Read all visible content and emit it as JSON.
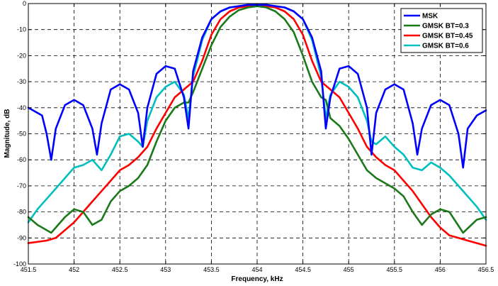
{
  "chart_data": {
    "type": "line",
    "title": "",
    "xlabel": "Frequency, kHz",
    "ylabel": "Magnitude, dB",
    "xlim": [
      451.5,
      456.5
    ],
    "ylim": [
      -100,
      0
    ],
    "xticks": [
      451.5,
      452,
      452.5,
      453,
      453.5,
      454,
      454.5,
      455,
      455.5,
      456,
      456.5
    ],
    "xtick_labels": [
      "451.5",
      "452",
      "452.5",
      "453",
      "453.5",
      "454",
      "454.5",
      "455",
      "455.5",
      "456",
      "456.5"
    ],
    "yticks": [
      0,
      -10,
      -20,
      -30,
      -40,
      -50,
      -60,
      -70,
      -80,
      -90,
      -100
    ],
    "ytick_labels": [
      "0",
      "-10",
      "-20",
      "-30",
      "-40",
      "-50",
      "-60",
      "-70",
      "-80",
      "-90",
      "-100"
    ],
    "grid": true,
    "legend_position": "top-right",
    "series": [
      {
        "name": "MSK",
        "color": "#0000ff",
        "x": [
          451.5,
          451.65,
          451.7,
          451.75,
          451.8,
          451.9,
          452.0,
          452.1,
          452.2,
          452.25,
          452.3,
          452.4,
          452.5,
          452.6,
          452.7,
          452.75,
          452.8,
          452.9,
          453.0,
          453.1,
          453.2,
          453.25,
          453.3,
          453.4,
          453.5,
          453.6,
          453.7,
          453.8,
          453.9,
          454.0,
          454.1,
          454.2,
          454.3,
          454.4,
          454.5,
          454.6,
          454.7,
          454.75,
          454.8,
          454.9,
          455.0,
          455.1,
          455.2,
          455.25,
          455.3,
          455.4,
          455.5,
          455.6,
          455.7,
          455.75,
          455.8,
          455.9,
          456.0,
          456.1,
          456.2,
          456.25,
          456.3,
          456.4,
          456.5
        ],
        "y": [
          -40,
          -43,
          -50,
          -60,
          -48,
          -39,
          -37,
          -39,
          -48,
          -58,
          -46,
          -33,
          -31,
          -33,
          -42,
          -55,
          -40,
          -27,
          -24,
          -25,
          -36,
          -48,
          -26,
          -13,
          -6,
          -3,
          -1.5,
          -1,
          -0.5,
          -0.5,
          -0.5,
          -1,
          -1.5,
          -3,
          -6,
          -13,
          -26,
          -48,
          -36,
          -25,
          -24,
          -27,
          -40,
          -58,
          -42,
          -33,
          -31,
          -33,
          -46,
          -58,
          -48,
          -39,
          -37,
          -39,
          -50,
          -63,
          -48,
          -43,
          -41
        ]
      },
      {
        "name": "GMSK BT=0.3",
        "color": "#1a7a1a",
        "x": [
          451.5,
          451.6,
          451.75,
          451.9,
          452.0,
          452.1,
          452.2,
          452.3,
          452.4,
          452.5,
          452.6,
          452.7,
          452.8,
          452.9,
          453.0,
          453.1,
          453.2,
          453.25,
          453.3,
          453.4,
          453.5,
          453.6,
          453.7,
          453.8,
          453.9,
          454.0,
          454.1,
          454.2,
          454.3,
          454.4,
          454.5,
          454.6,
          454.7,
          454.75,
          454.8,
          454.9,
          455.0,
          455.1,
          455.2,
          455.3,
          455.4,
          455.5,
          455.6,
          455.7,
          455.8,
          455.9,
          456.0,
          456.1,
          456.25,
          456.4,
          456.5
        ],
        "y": [
          -82,
          -85,
          -88,
          -82,
          -79,
          -80,
          -85,
          -83,
          -76,
          -72,
          -70,
          -67,
          -62,
          -53,
          -45,
          -40,
          -38,
          -38,
          -34,
          -25,
          -16,
          -9,
          -5,
          -2.5,
          -1.5,
          -1,
          -1.5,
          -3,
          -6,
          -11,
          -20,
          -30,
          -36,
          -37,
          -44,
          -47,
          -52,
          -58,
          -64,
          -67,
          -69,
          -71,
          -74,
          -80,
          -85,
          -81,
          -79,
          -80,
          -88,
          -83,
          -82
        ]
      },
      {
        "name": "GMSK BT=0.45",
        "color": "#ff0000",
        "x": [
          451.5,
          451.7,
          451.8,
          451.9,
          452.0,
          452.1,
          452.2,
          452.3,
          452.4,
          452.5,
          452.6,
          452.7,
          452.8,
          452.9,
          453.0,
          453.1,
          453.2,
          453.3,
          453.4,
          453.5,
          453.6,
          453.7,
          453.8,
          453.9,
          454.0,
          454.1,
          454.2,
          454.3,
          454.4,
          454.5,
          454.6,
          454.7,
          454.8,
          454.9,
          455.0,
          455.1,
          455.2,
          455.3,
          455.4,
          455.5,
          455.6,
          455.7,
          455.8,
          455.9,
          456.0,
          456.1,
          456.2,
          456.3,
          456.4,
          456.5
        ],
        "y": [
          -92,
          -91,
          -90,
          -87,
          -84,
          -80,
          -76,
          -72,
          -68,
          -64,
          -62,
          -59,
          -55,
          -48,
          -42,
          -36,
          -33,
          -30,
          -22,
          -12,
          -6,
          -3,
          -1.5,
          -1,
          -0.5,
          -1,
          -1.5,
          -3,
          -6,
          -12,
          -22,
          -30,
          -33,
          -36,
          -42,
          -48,
          -55,
          -59,
          -62,
          -64,
          -68,
          -72,
          -77,
          -82,
          -86,
          -89,
          -90,
          -91,
          -92,
          -93
        ]
      },
      {
        "name": "GMSK BT=0.6",
        "color": "#00bfbf",
        "x": [
          451.5,
          451.6,
          451.7,
          451.8,
          451.9,
          452.0,
          452.1,
          452.2,
          452.3,
          452.4,
          452.5,
          452.6,
          452.7,
          452.75,
          452.8,
          452.9,
          453.0,
          453.1,
          453.2,
          453.25,
          453.3,
          453.4,
          453.5,
          453.6,
          453.7,
          453.8,
          453.9,
          454.0,
          454.1,
          454.2,
          454.3,
          454.4,
          454.5,
          454.6,
          454.7,
          454.75,
          454.8,
          454.9,
          455.0,
          455.1,
          455.2,
          455.25,
          455.3,
          455.4,
          455.5,
          455.6,
          455.7,
          455.8,
          455.9,
          456.0,
          456.1,
          456.2,
          456.3,
          456.4,
          456.5
        ],
        "y": [
          -84,
          -79,
          -75,
          -71,
          -67,
          -63,
          -62,
          -60,
          -64,
          -58,
          -51,
          -50,
          -53,
          -55,
          -45,
          -36,
          -32,
          -30,
          -35,
          -44,
          -28,
          -14,
          -6,
          -3,
          -1.5,
          -1,
          -0.5,
          -0.5,
          -0.5,
          -1,
          -1.5,
          -3,
          -6,
          -14,
          -28,
          -44,
          -35,
          -30,
          -32,
          -36,
          -45,
          -53,
          -54,
          -51,
          -55,
          -58,
          -63,
          -64,
          -61,
          -63,
          -66,
          -70,
          -74,
          -78,
          -83
        ]
      }
    ]
  }
}
